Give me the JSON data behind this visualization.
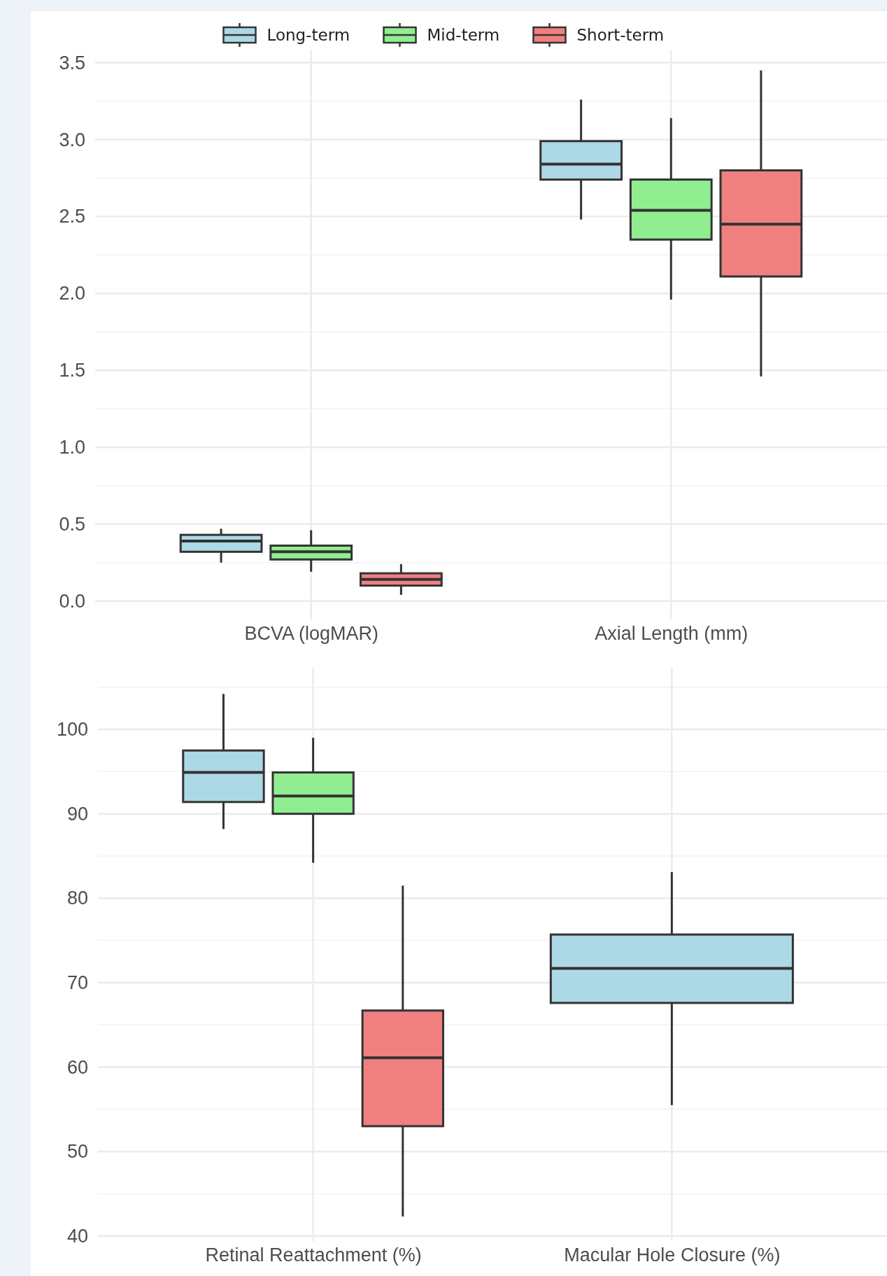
{
  "chart_data": [
    {
      "type": "box",
      "categories": [
        "BCVA (logMAR)",
        "Axial Length (mm)"
      ],
      "ylim": [
        -0.12,
        3.58
      ],
      "yticks": [
        {
          "value": 0,
          "label": "0.0"
        },
        0.5,
        {
          "value": 1,
          "label": "1.0"
        },
        1.5,
        {
          "value": 2,
          "label": "2.0"
        },
        2.5,
        {
          "value": 3,
          "label": "3.0"
        },
        3.5
      ],
      "grid": true,
      "legend": "top",
      "series": [
        {
          "name": "Long-term",
          "color": "#add8e6",
          "boxes": [
            {
              "low": 0.25,
              "q1": 0.32,
              "median": 0.39,
              "q3": 0.43,
              "high": 0.47
            },
            {
              "low": 2.48,
              "q1": 2.74,
              "median": 2.84,
              "q3": 2.99,
              "high": 3.26
            }
          ]
        },
        {
          "name": "Mid-term",
          "color": "#90ee90",
          "boxes": [
            {
              "low": 0.19,
              "q1": 0.27,
              "median": 0.32,
              "q3": 0.36,
              "high": 0.46
            },
            {
              "low": 1.96,
              "q1": 2.35,
              "median": 2.54,
              "q3": 2.74,
              "high": 3.14
            }
          ]
        },
        {
          "name": "Short-term",
          "color": "#f08080",
          "boxes": [
            {
              "low": 0.04,
              "q1": 0.1,
              "median": 0.14,
              "q3": 0.18,
              "high": 0.24
            },
            {
              "low": 1.46,
              "q1": 2.11,
              "median": 2.45,
              "q3": 2.8,
              "high": 3.45
            }
          ]
        }
      ]
    },
    {
      "type": "box",
      "categories": [
        "Retinal Reattachment (%)",
        "Macular Hole Closure (%)"
      ],
      "ylim": [
        39.4,
        107.3
      ],
      "yticks": [
        40,
        50,
        60,
        70,
        80,
        90,
        100
      ],
      "grid": true,
      "series": [
        {
          "color": "#add8e6",
          "boxes": [
            {
              "low": 88.2,
              "q1": 91.4,
              "median": 94.9,
              "q3": 97.5,
              "high": 104.2
            },
            {
              "low": 55.5,
              "q1": 67.6,
              "median": 71.7,
              "q3": 75.7,
              "high": 83.1
            }
          ]
        },
        {
          "color": "#90ee90",
          "boxes": [
            {
              "low": 84.2,
              "q1": 90,
              "median": 92.1,
              "q3": 94.9,
              "high": 99
            },
            null
          ]
        },
        {
          "color": "#f08080",
          "boxes": [
            {
              "low": 42.3,
              "q1": 53,
              "median": 61.1,
              "q3": 66.7,
              "high": 81.5
            },
            null
          ]
        }
      ]
    }
  ]
}
